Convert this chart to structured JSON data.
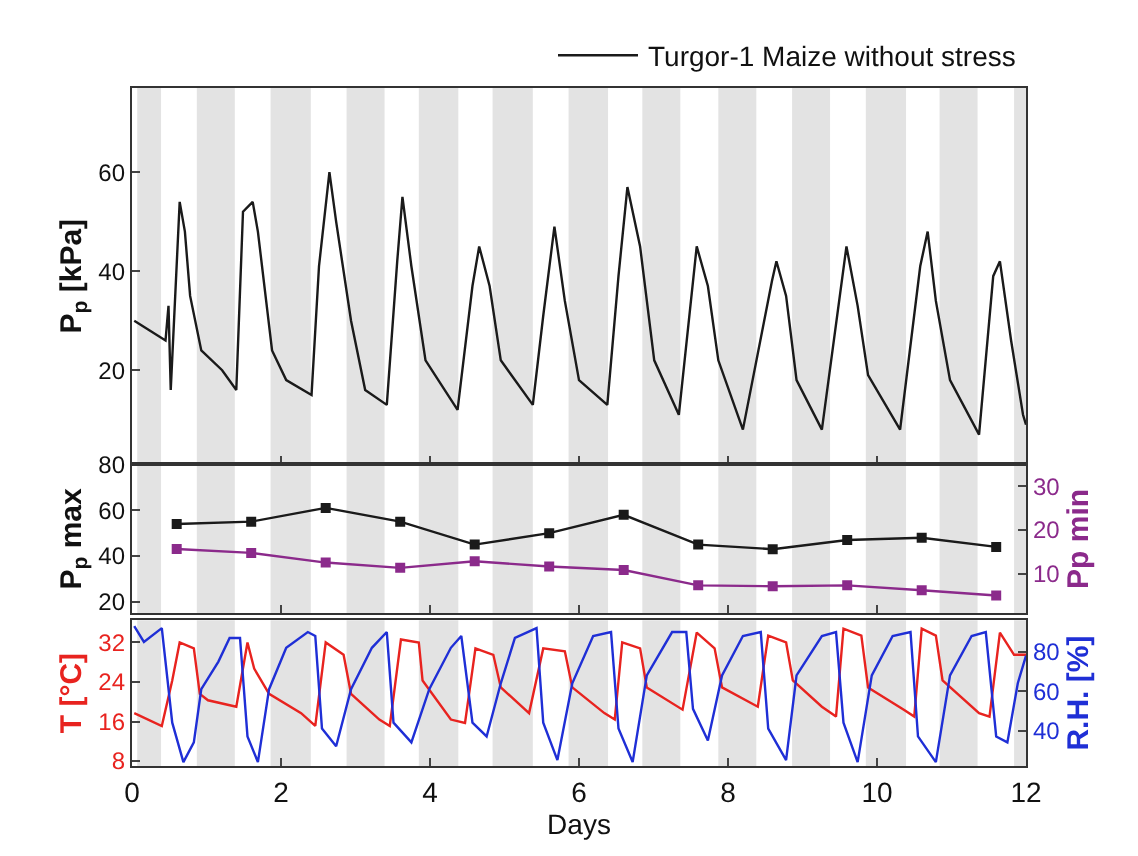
{
  "chart_data": [
    {
      "type": "line",
      "ylabel": "P$_{p}$ [kPa]",
      "xlim": [
        0,
        12
      ],
      "xticks": [
        0,
        2,
        4,
        6,
        8,
        10,
        12
      ],
      "ylim": [
        1,
        77
      ],
      "yticks": [
        20,
        40,
        60
      ],
      "tick_labels": "y",
      "legend": "top right",
      "grid": false,
      "marker": "none",
      "line_style": "solid",
      "bands": [
        {
          "axis": "x",
          "from": 0.07,
          "to": 0.39,
          "color": "#e3e3e3"
        },
        {
          "axis": "x",
          "from": 0.87,
          "to": 1.38,
          "color": "#e3e3e3"
        },
        {
          "axis": "x",
          "from": 1.86,
          "to": 2.4,
          "color": "#e3e3e3"
        },
        {
          "axis": "x",
          "from": 2.88,
          "to": 3.39,
          "color": "#e3e3e3"
        },
        {
          "axis": "x",
          "from": 3.85,
          "to": 4.38,
          "color": "#e3e3e3"
        },
        {
          "axis": "x",
          "from": 4.84,
          "to": 5.38,
          "color": "#e3e3e3"
        },
        {
          "axis": "x",
          "from": 5.86,
          "to": 6.39,
          "color": "#e3e3e3"
        },
        {
          "axis": "x",
          "from": 6.85,
          "to": 7.36,
          "color": "#e3e3e3"
        },
        {
          "axis": "x",
          "from": 7.87,
          "to": 8.38,
          "color": "#e3e3e3"
        },
        {
          "axis": "x",
          "from": 8.86,
          "to": 9.37,
          "color": "#e3e3e3"
        },
        {
          "axis": "x",
          "from": 9.85,
          "to": 10.39,
          "color": "#e3e3e3"
        },
        {
          "axis": "x",
          "from": 10.84,
          "to": 11.35,
          "color": "#e3e3e3"
        },
        {
          "axis": "x",
          "from": 11.84,
          "to": 12,
          "color": "#e3e3e3"
        }
      ],
      "series": [
        {
          "name": "Turgor-1 Maize without stress",
          "color": "#1a1a1a",
          "x": [
            0.03,
            0.45,
            0.49,
            0.52,
            0.64,
            0.71,
            0.78,
            0.93,
            1.21,
            1.4,
            1.49,
            1.62,
            1.69,
            1.88,
            2.07,
            2.41,
            2.51,
            2.65,
            2.74,
            2.94,
            3.13,
            3.42,
            3.56,
            3.63,
            3.75,
            3.94,
            4.37,
            4.57,
            4.66,
            4.8,
            4.95,
            5.38,
            5.52,
            5.67,
            5.81,
            6.0,
            6.38,
            6.53,
            6.65,
            6.82,
            7.01,
            7.34,
            7.58,
            7.73,
            7.87,
            8.2,
            8.59,
            8.65,
            8.78,
            8.92,
            9.26,
            9.59,
            9.74,
            9.88,
            10.31,
            10.58,
            10.68,
            10.79,
            10.98,
            11.37,
            11.56,
            11.65,
            11.8,
            11.96,
            12.0
          ],
          "values": [
            30,
            26,
            33,
            16,
            54,
            48,
            35,
            24,
            20,
            16,
            52,
            54,
            48,
            24,
            18,
            15,
            41,
            60,
            50,
            30,
            16,
            13,
            42,
            55,
            41,
            22,
            12,
            37,
            45,
            37,
            22,
            13,
            31,
            49,
            34,
            18,
            13,
            39,
            57,
            45,
            22,
            11,
            45,
            37,
            22,
            8,
            38,
            42,
            35,
            18,
            8,
            45,
            33,
            19,
            8,
            41,
            48,
            34,
            18,
            7,
            39,
            42,
            26,
            11,
            9
          ]
        }
      ]
    },
    {
      "type": "line",
      "ylabel": "P$_{p}$ max",
      "y2label": "Pp min",
      "xlim": [
        0,
        12
      ],
      "xticks": [
        0,
        2,
        4,
        6,
        8,
        10,
        12
      ],
      "ylim": [
        15,
        80
      ],
      "yticks": [
        20,
        40,
        60,
        80
      ],
      "y2lim": [
        1,
        35
      ],
      "y2ticks": [
        10,
        20,
        30
      ],
      "tick_labels": "y",
      "legend": false,
      "grid": false,
      "marker": "square",
      "line_style": "solid",
      "bands": [
        {
          "axis": "x",
          "from": 0.07,
          "to": 0.39,
          "color": "#e3e3e3"
        },
        {
          "axis": "x",
          "from": 0.87,
          "to": 1.38,
          "color": "#e3e3e3"
        },
        {
          "axis": "x",
          "from": 1.86,
          "to": 2.4,
          "color": "#e3e3e3"
        },
        {
          "axis": "x",
          "from": 2.88,
          "to": 3.39,
          "color": "#e3e3e3"
        },
        {
          "axis": "x",
          "from": 3.85,
          "to": 4.38,
          "color": "#e3e3e3"
        },
        {
          "axis": "x",
          "from": 4.84,
          "to": 5.38,
          "color": "#e3e3e3"
        },
        {
          "axis": "x",
          "from": 5.86,
          "to": 6.39,
          "color": "#e3e3e3"
        },
        {
          "axis": "x",
          "from": 6.85,
          "to": 7.36,
          "color": "#e3e3e3"
        },
        {
          "axis": "x",
          "from": 7.87,
          "to": 8.38,
          "color": "#e3e3e3"
        },
        {
          "axis": "x",
          "from": 8.86,
          "to": 9.37,
          "color": "#e3e3e3"
        },
        {
          "axis": "x",
          "from": 9.85,
          "to": 10.39,
          "color": "#e3e3e3"
        },
        {
          "axis": "x",
          "from": 10.84,
          "to": 11.35,
          "color": "#e3e3e3"
        },
        {
          "axis": "x",
          "from": 11.84,
          "to": 12,
          "color": "#e3e3e3"
        }
      ],
      "series": [
        {
          "color": "#1a1a1a",
          "x": [
            0.6,
            1.6,
            2.6,
            3.6,
            4.6,
            5.6,
            6.6,
            7.6,
            8.6,
            9.6,
            10.6,
            11.6
          ],
          "values": [
            54,
            55,
            61,
            55,
            45,
            50,
            58,
            45,
            43,
            47,
            48,
            44
          ]
        },
        {
          "color": "#8b2a8b",
          "axis": "y2",
          "x": [
            0.6,
            1.6,
            2.6,
            3.6,
            4.6,
            5.6,
            6.6,
            7.6,
            8.6,
            9.6,
            10.6,
            11.6
          ],
          "values": [
            15.7,
            14.8,
            12.6,
            11.4,
            12.9,
            11.7,
            10.9,
            7.4,
            7.2,
            7.4,
            6.3,
            5.1
          ]
        }
      ]
    },
    {
      "type": "line",
      "xlabel": "Days",
      "ylabel": "T [°C]",
      "y2label": "R.H. [%]",
      "xlim": [
        0,
        12
      ],
      "xticks": [
        0,
        2,
        4,
        6,
        8,
        10,
        12
      ],
      "ylim": [
        7,
        36.5
      ],
      "yticks": [
        8,
        16,
        24,
        32
      ],
      "y2lim": [
        22,
        96
      ],
      "y2ticks": [
        40,
        60,
        80
      ],
      "legend": false,
      "grid": false,
      "marker": "none",
      "line_style": "solid",
      "bands": [
        {
          "axis": "x",
          "from": 0.07,
          "to": 0.39,
          "color": "#e3e3e3"
        },
        {
          "axis": "x",
          "from": 0.87,
          "to": 1.38,
          "color": "#e3e3e3"
        },
        {
          "axis": "x",
          "from": 1.86,
          "to": 2.4,
          "color": "#e3e3e3"
        },
        {
          "axis": "x",
          "from": 2.88,
          "to": 3.39,
          "color": "#e3e3e3"
        },
        {
          "axis": "x",
          "from": 3.85,
          "to": 4.38,
          "color": "#e3e3e3"
        },
        {
          "axis": "x",
          "from": 4.84,
          "to": 5.38,
          "color": "#e3e3e3"
        },
        {
          "axis": "x",
          "from": 5.86,
          "to": 6.39,
          "color": "#e3e3e3"
        },
        {
          "axis": "x",
          "from": 6.85,
          "to": 7.36,
          "color": "#e3e3e3"
        },
        {
          "axis": "x",
          "from": 7.87,
          "to": 8.38,
          "color": "#e3e3e3"
        },
        {
          "axis": "x",
          "from": 8.86,
          "to": 9.37,
          "color": "#e3e3e3"
        },
        {
          "axis": "x",
          "from": 9.85,
          "to": 10.39,
          "color": "#e3e3e3"
        },
        {
          "axis": "x",
          "from": 10.84,
          "to": 11.35,
          "color": "#e3e3e3"
        },
        {
          "axis": "x",
          "from": 11.84,
          "to": 12,
          "color": "#e3e3e3"
        }
      ],
      "series": [
        {
          "color": "#e8231f",
          "x": [
            0.03,
            0.4,
            0.54,
            0.64,
            0.83,
            0.91,
            1.02,
            1.4,
            1.55,
            1.64,
            1.84,
            2.27,
            2.46,
            2.6,
            2.84,
            2.94,
            3.32,
            3.46,
            3.61,
            3.85,
            3.9,
            4.28,
            4.47,
            4.61,
            4.85,
            4.95,
            5.33,
            5.52,
            5.81,
            5.91,
            6.34,
            6.48,
            6.58,
            6.82,
            6.91,
            7.39,
            7.58,
            7.82,
            7.92,
            8.4,
            8.54,
            8.78,
            8.87,
            9.26,
            9.45,
            9.55,
            9.79,
            9.88,
            10.36,
            10.5,
            10.6,
            10.79,
            10.88,
            11.37,
            11.51,
            11.65,
            11.84,
            12.0
          ],
          "values": [
            17.7,
            15.1,
            24.3,
            32,
            30.8,
            21.6,
            20.3,
            19,
            32,
            26.7,
            21.6,
            17.7,
            15.1,
            32,
            29.5,
            21.6,
            16.4,
            15.1,
            32.6,
            32,
            24.3,
            16.4,
            15.7,
            30.8,
            29.5,
            22.9,
            17.7,
            30.8,
            30.2,
            22.9,
            17.7,
            16.4,
            32,
            30.8,
            22.9,
            18.4,
            34,
            30.8,
            22.9,
            19,
            33.4,
            32,
            24.3,
            19,
            17,
            34.8,
            33.4,
            22.9,
            18.4,
            17,
            34.8,
            33.4,
            24.3,
            17.7,
            17,
            34,
            29.5,
            29.5
          ]
        },
        {
          "color": "#1f2fd6",
          "axis": "y2",
          "x": [
            0.03,
            0.16,
            0.4,
            0.54,
            0.69,
            0.83,
            0.93,
            1.16,
            1.31,
            1.45,
            1.55,
            1.69,
            1.84,
            2.07,
            2.36,
            2.46,
            2.55,
            2.74,
            2.94,
            3.22,
            3.42,
            3.51,
            3.75,
            3.99,
            4.28,
            4.42,
            4.57,
            4.76,
            4.95,
            5.14,
            5.43,
            5.52,
            5.71,
            5.91,
            6.19,
            6.43,
            6.53,
            6.72,
            6.91,
            7.25,
            7.44,
            7.53,
            7.73,
            7.92,
            8.2,
            8.44,
            8.54,
            8.78,
            8.92,
            9.26,
            9.45,
            9.55,
            9.74,
            9.93,
            10.21,
            10.45,
            10.55,
            10.79,
            10.98,
            11.27,
            11.46,
            11.6,
            11.75,
            11.89,
            12.0
          ],
          "values": [
            93,
            85,
            92,
            44,
            24,
            34,
            61,
            75,
            87,
            87,
            37,
            24,
            61,
            82,
            90,
            88,
            41,
            32,
            61,
            82,
            90,
            44,
            34,
            61,
            82,
            88,
            44,
            37,
            64,
            87,
            92,
            44,
            25,
            64,
            88,
            90,
            41,
            24,
            68,
            90,
            90,
            51,
            35,
            68,
            88,
            90,
            41,
            25,
            68,
            88,
            90,
            44,
            24,
            68,
            88,
            90,
            37,
            24,
            68,
            88,
            90,
            37,
            34,
            64,
            78
          ]
        }
      ]
    }
  ]
}
